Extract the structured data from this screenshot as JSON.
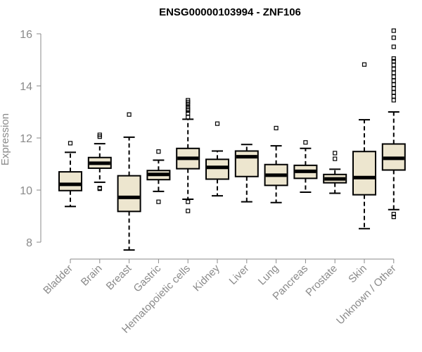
{
  "chart_data": {
    "type": "box",
    "title": "ENSG00000103994 - ZNF106",
    "xlabel": "",
    "ylabel": "Expression",
    "ylim": [
      7.6,
      16.4
    ],
    "yticks": [
      8,
      10,
      12,
      14,
      16
    ],
    "grid": false,
    "box_fill": "#ede6cf",
    "box_stroke": "#000000",
    "categories": [
      "Bladder",
      "Brain",
      "Breast",
      "Gastric",
      "Hematopoietic cells",
      "Kidney",
      "Liver",
      "Lung",
      "Pancreas",
      "Prostate",
      "Skin",
      "Unknown / Other"
    ],
    "series": [
      {
        "category": "Bladder",
        "whisker_low": 9.37,
        "q1": 9.98,
        "median": 10.22,
        "q3": 10.7,
        "whisker_high": 11.45,
        "outliers": [
          11.8
        ]
      },
      {
        "category": "Brain",
        "whisker_low": 10.3,
        "q1": 10.84,
        "median": 11.03,
        "q3": 11.25,
        "whisker_high": 11.78,
        "outliers": [
          10.05,
          10.08,
          12.05,
          12.12
        ]
      },
      {
        "category": "Breast",
        "whisker_low": 7.7,
        "q1": 9.18,
        "median": 9.72,
        "q3": 10.55,
        "whisker_high": 12.03,
        "outliers": [
          12.9
        ]
      },
      {
        "category": "Gastric",
        "whisker_low": 9.95,
        "q1": 10.4,
        "median": 10.6,
        "q3": 10.75,
        "whisker_high": 11.15,
        "outliers": [
          9.55,
          11.48
        ]
      },
      {
        "category": "Hematopoietic cells",
        "whisker_low": 9.65,
        "q1": 10.82,
        "median": 11.22,
        "q3": 11.6,
        "whisker_high": 12.72,
        "outliers": [
          9.2,
          9.55,
          12.8,
          12.95,
          13.05,
          13.12,
          13.2,
          13.3,
          13.38,
          13.45
        ]
      },
      {
        "category": "Kidney",
        "whisker_low": 9.78,
        "q1": 10.42,
        "median": 10.87,
        "q3": 11.18,
        "whisker_high": 11.5,
        "outliers": [
          12.55
        ]
      },
      {
        "category": "Liver",
        "whisker_low": 9.55,
        "q1": 10.52,
        "median": 11.28,
        "q3": 11.5,
        "whisker_high": 11.75,
        "outliers": []
      },
      {
        "category": "Lung",
        "whisker_low": 9.52,
        "q1": 10.18,
        "median": 10.57,
        "q3": 10.98,
        "whisker_high": 11.7,
        "outliers": [
          12.38
        ]
      },
      {
        "category": "Pancreas",
        "whisker_low": 9.92,
        "q1": 10.45,
        "median": 10.72,
        "q3": 10.95,
        "whisker_high": 11.6,
        "outliers": [
          11.83
        ]
      },
      {
        "category": "Prostate",
        "whisker_low": 9.88,
        "q1": 10.28,
        "median": 10.43,
        "q3": 10.6,
        "whisker_high": 10.8,
        "outliers": [
          11.2,
          11.42
        ]
      },
      {
        "category": "Skin",
        "whisker_low": 8.52,
        "q1": 9.82,
        "median": 10.48,
        "q3": 11.48,
        "whisker_high": 12.7,
        "outliers": [
          14.82
        ]
      },
      {
        "category": "Unknown / Other",
        "whisker_low": 9.25,
        "q1": 10.77,
        "median": 11.22,
        "q3": 11.77,
        "whisker_high": 13.0,
        "outliers": [
          8.97,
          9.08,
          13.45,
          13.6,
          13.75,
          13.9,
          14.05,
          14.2,
          14.35,
          14.5,
          14.65,
          14.8,
          14.95,
          15.05,
          15.5,
          15.85,
          16.12
        ]
      }
    ]
  }
}
